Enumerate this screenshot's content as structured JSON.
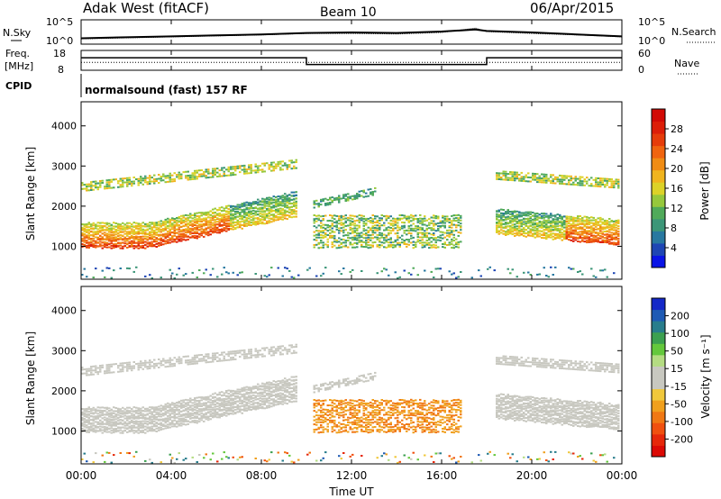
{
  "header": {
    "title": "Adak West (fitACF)",
    "beam": "Beam 10",
    "date": "06/Apr/2015"
  },
  "top_panels": {
    "nsky_label": "N.Sky",
    "nsky_ticks": [
      "10^5",
      "10^0"
    ],
    "nsearch_label": "N.Search",
    "nsearch_ticks": [
      "10^5",
      "10^0"
    ],
    "freq_label": "Freq.",
    "freq_unit": "[MHz]",
    "freq_ticks": [
      "18",
      "8"
    ],
    "nave_label": "Nave",
    "nave_ticks": [
      "60",
      "0"
    ],
    "cpid_label": "CPID",
    "cpid_text": "normalsound (fast) 157 RF"
  },
  "colors": {
    "power_scale": [
      "#0a14e6",
      "#1e46b4",
      "#2878a0",
      "#3c9678",
      "#50aa5a",
      "#96c83c",
      "#dcd228",
      "#f0b41e",
      "#f08c14",
      "#f0640f",
      "#e63c0a",
      "#dc1e08",
      "#d20a05"
    ],
    "velocity_scale": [
      "#1428c8",
      "#1e5ab4",
      "#287d8c",
      "#3ca050",
      "#64c83c",
      "#b4dc82",
      "#c8c8c0",
      "#c8c8c0",
      "#f0c83c",
      "#f0a01e",
      "#f07814",
      "#f0500f",
      "#e6280a",
      "#dc0a05"
    ]
  },
  "chart_data": [
    {
      "type": "line",
      "panel": "noise",
      "x_unit": "UT hours",
      "series": [
        {
          "name": "N.Sky",
          "x": [
            0,
            2,
            4,
            6,
            8,
            10,
            12,
            14,
            16,
            17.5,
            18,
            20,
            22,
            24
          ],
          "values": [
            1.2,
            1.4,
            1.6,
            1.8,
            2.0,
            2.3,
            2.4,
            2.3,
            2.6,
            3.0,
            2.7,
            2.4,
            2.0,
            1.6
          ]
        },
        {
          "name": "N.Search",
          "x": [
            0,
            2,
            4,
            6,
            8,
            10,
            12,
            14,
            16,
            17.5,
            18,
            20,
            22,
            24
          ],
          "values": [
            1.1,
            1.3,
            1.5,
            1.7,
            1.9,
            2.2,
            2.2,
            2.1,
            2.4,
            3.3,
            2.6,
            2.2,
            1.9,
            1.5
          ]
        }
      ],
      "ylim": [
        0,
        5
      ]
    },
    {
      "type": "line",
      "panel": "frequency",
      "series": [
        {
          "name": "Freq.",
          "x": [
            0,
            10,
            10,
            18,
            18,
            24
          ],
          "values": [
            14.3,
            14.3,
            10.9,
            10.9,
            14.3,
            14.3
          ]
        },
        {
          "name": "Nave",
          "x": [
            0,
            24
          ],
          "values": [
            12,
            12
          ]
        }
      ],
      "ylim": [
        8,
        18
      ]
    },
    {
      "type": "heatmap",
      "panel": "power",
      "ylabel": "Slant Range [km]",
      "yticks": [
        "1000",
        "2000",
        "3000",
        "4000"
      ],
      "ylim": [
        180,
        4600
      ],
      "colorbar_label": "Power [dB]",
      "colorbar_ticks": [
        "4",
        "8",
        "12",
        "16",
        "20",
        "24",
        "28"
      ],
      "colorbar_range": [
        0,
        30
      ]
    },
    {
      "type": "heatmap",
      "panel": "velocity",
      "ylabel": "Slant Range [km]",
      "yticks": [
        "1000",
        "2000",
        "3000",
        "4000"
      ],
      "ylim": [
        180,
        4600
      ],
      "colorbar_label": "Velocity [m s⁻¹]",
      "colorbar_ticks": [
        "200",
        "100",
        "50",
        "15",
        "-15",
        "-50",
        "-100",
        "-200"
      ],
      "xlabel": "Time UT",
      "xticks": [
        "00:00",
        "04:00",
        "08:00",
        "12:00",
        "16:00",
        "20:00",
        "00:00"
      ],
      "xlim": [
        0,
        24
      ]
    }
  ]
}
